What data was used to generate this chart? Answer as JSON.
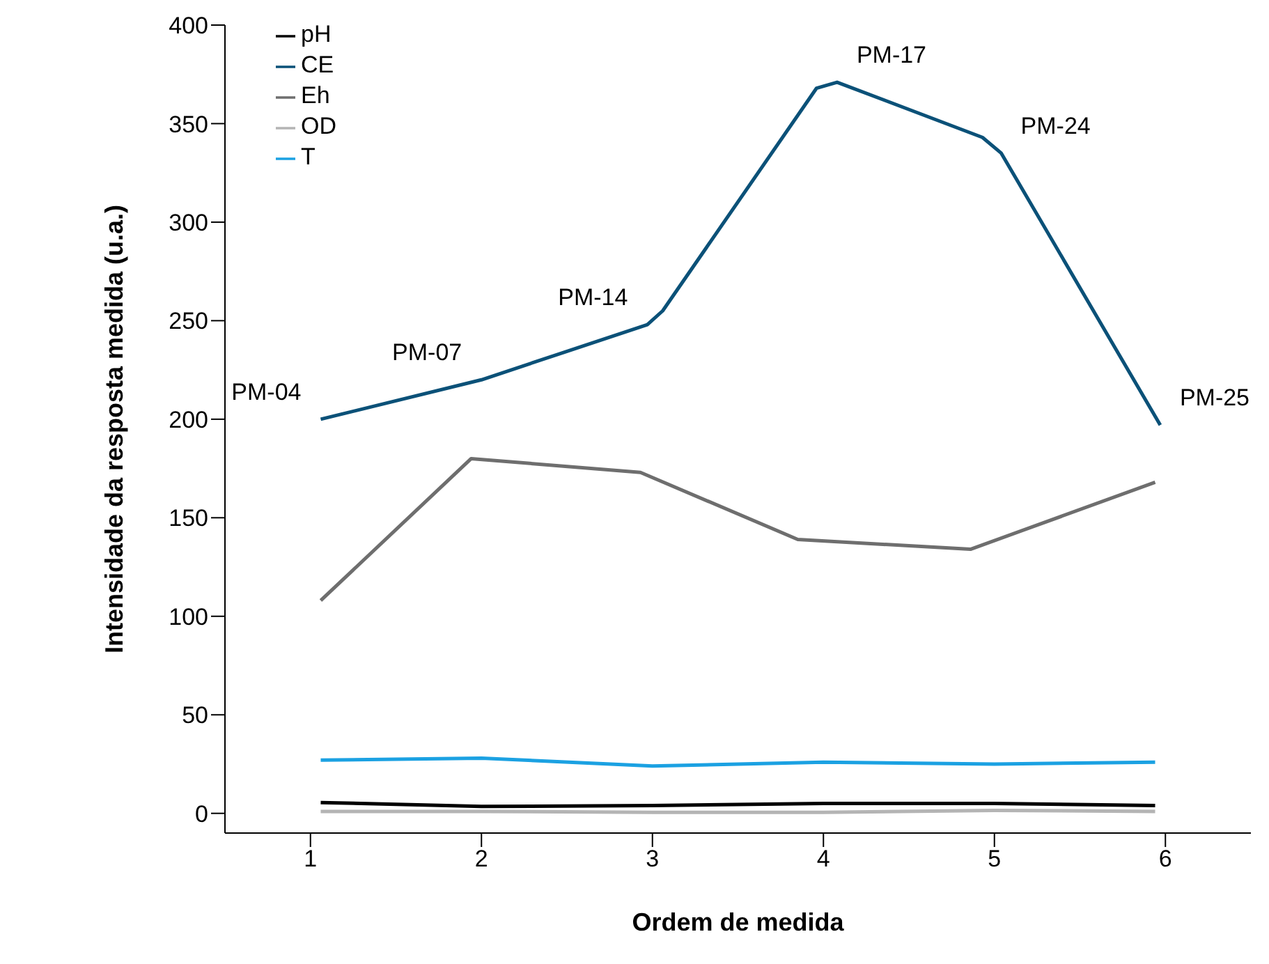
{
  "chart_data": {
    "type": "line",
    "xlabel": "Ordem de medida",
    "ylabel": "Intensidade da resposta medida (u.a.)",
    "xlim": [
      0.5,
      6.5
    ],
    "xticks": [
      1,
      2,
      3,
      4,
      5,
      6
    ],
    "ylim": [
      -10,
      400
    ],
    "yticks": [
      0,
      50,
      100,
      150,
      200,
      250,
      300,
      350,
      400
    ],
    "grid": false,
    "legend": "top left",
    "marker": "none",
    "line_style": "solid",
    "series": [
      {
        "name": "pH",
        "color": "#000000",
        "x": [
          1.06,
          2,
          3,
          4,
          5,
          5.94
        ],
        "values": [
          5.5,
          3.5,
          4,
          5,
          5,
          4
        ]
      },
      {
        "name": "CE",
        "color": "#0b5178",
        "x": [
          1.06,
          2,
          2.97,
          3.06,
          3.96,
          4.08,
          4.93,
          5.04,
          5.97
        ],
        "values": [
          200,
          220,
          248,
          255,
          368,
          371,
          343,
          335,
          197
        ]
      },
      {
        "name": "Eh",
        "color": "#6e6e6e",
        "x": [
          1.06,
          1.94,
          2.93,
          3.85,
          4.86,
          5.94
        ],
        "values": [
          108,
          180,
          173,
          139,
          134,
          168
        ]
      },
      {
        "name": "OD",
        "color": "#b4b4b4",
        "x": [
          1.06,
          2,
          3,
          4,
          5,
          5.94
        ],
        "values": [
          1,
          1,
          0.5,
          0.5,
          1.5,
          1
        ]
      },
      {
        "name": "T",
        "color": "#1ba1e2",
        "x": [
          1.06,
          2,
          3,
          4,
          5,
          5.94
        ],
        "values": [
          27,
          28,
          24,
          26,
          25,
          26
        ]
      }
    ],
    "annotations": [
      {
        "text": "PM-04",
        "x": 1.06,
        "y": 200
      },
      {
        "text": "PM-07",
        "x": 2,
        "y": 220
      },
      {
        "text": "PM-14",
        "x": 2.97,
        "y": 248
      },
      {
        "text": "PM-17",
        "x": 4.08,
        "y": 371
      },
      {
        "text": "PM-24",
        "x": 5.04,
        "y": 335
      },
      {
        "text": "PM-25",
        "x": 5.97,
        "y": 197
      }
    ]
  }
}
